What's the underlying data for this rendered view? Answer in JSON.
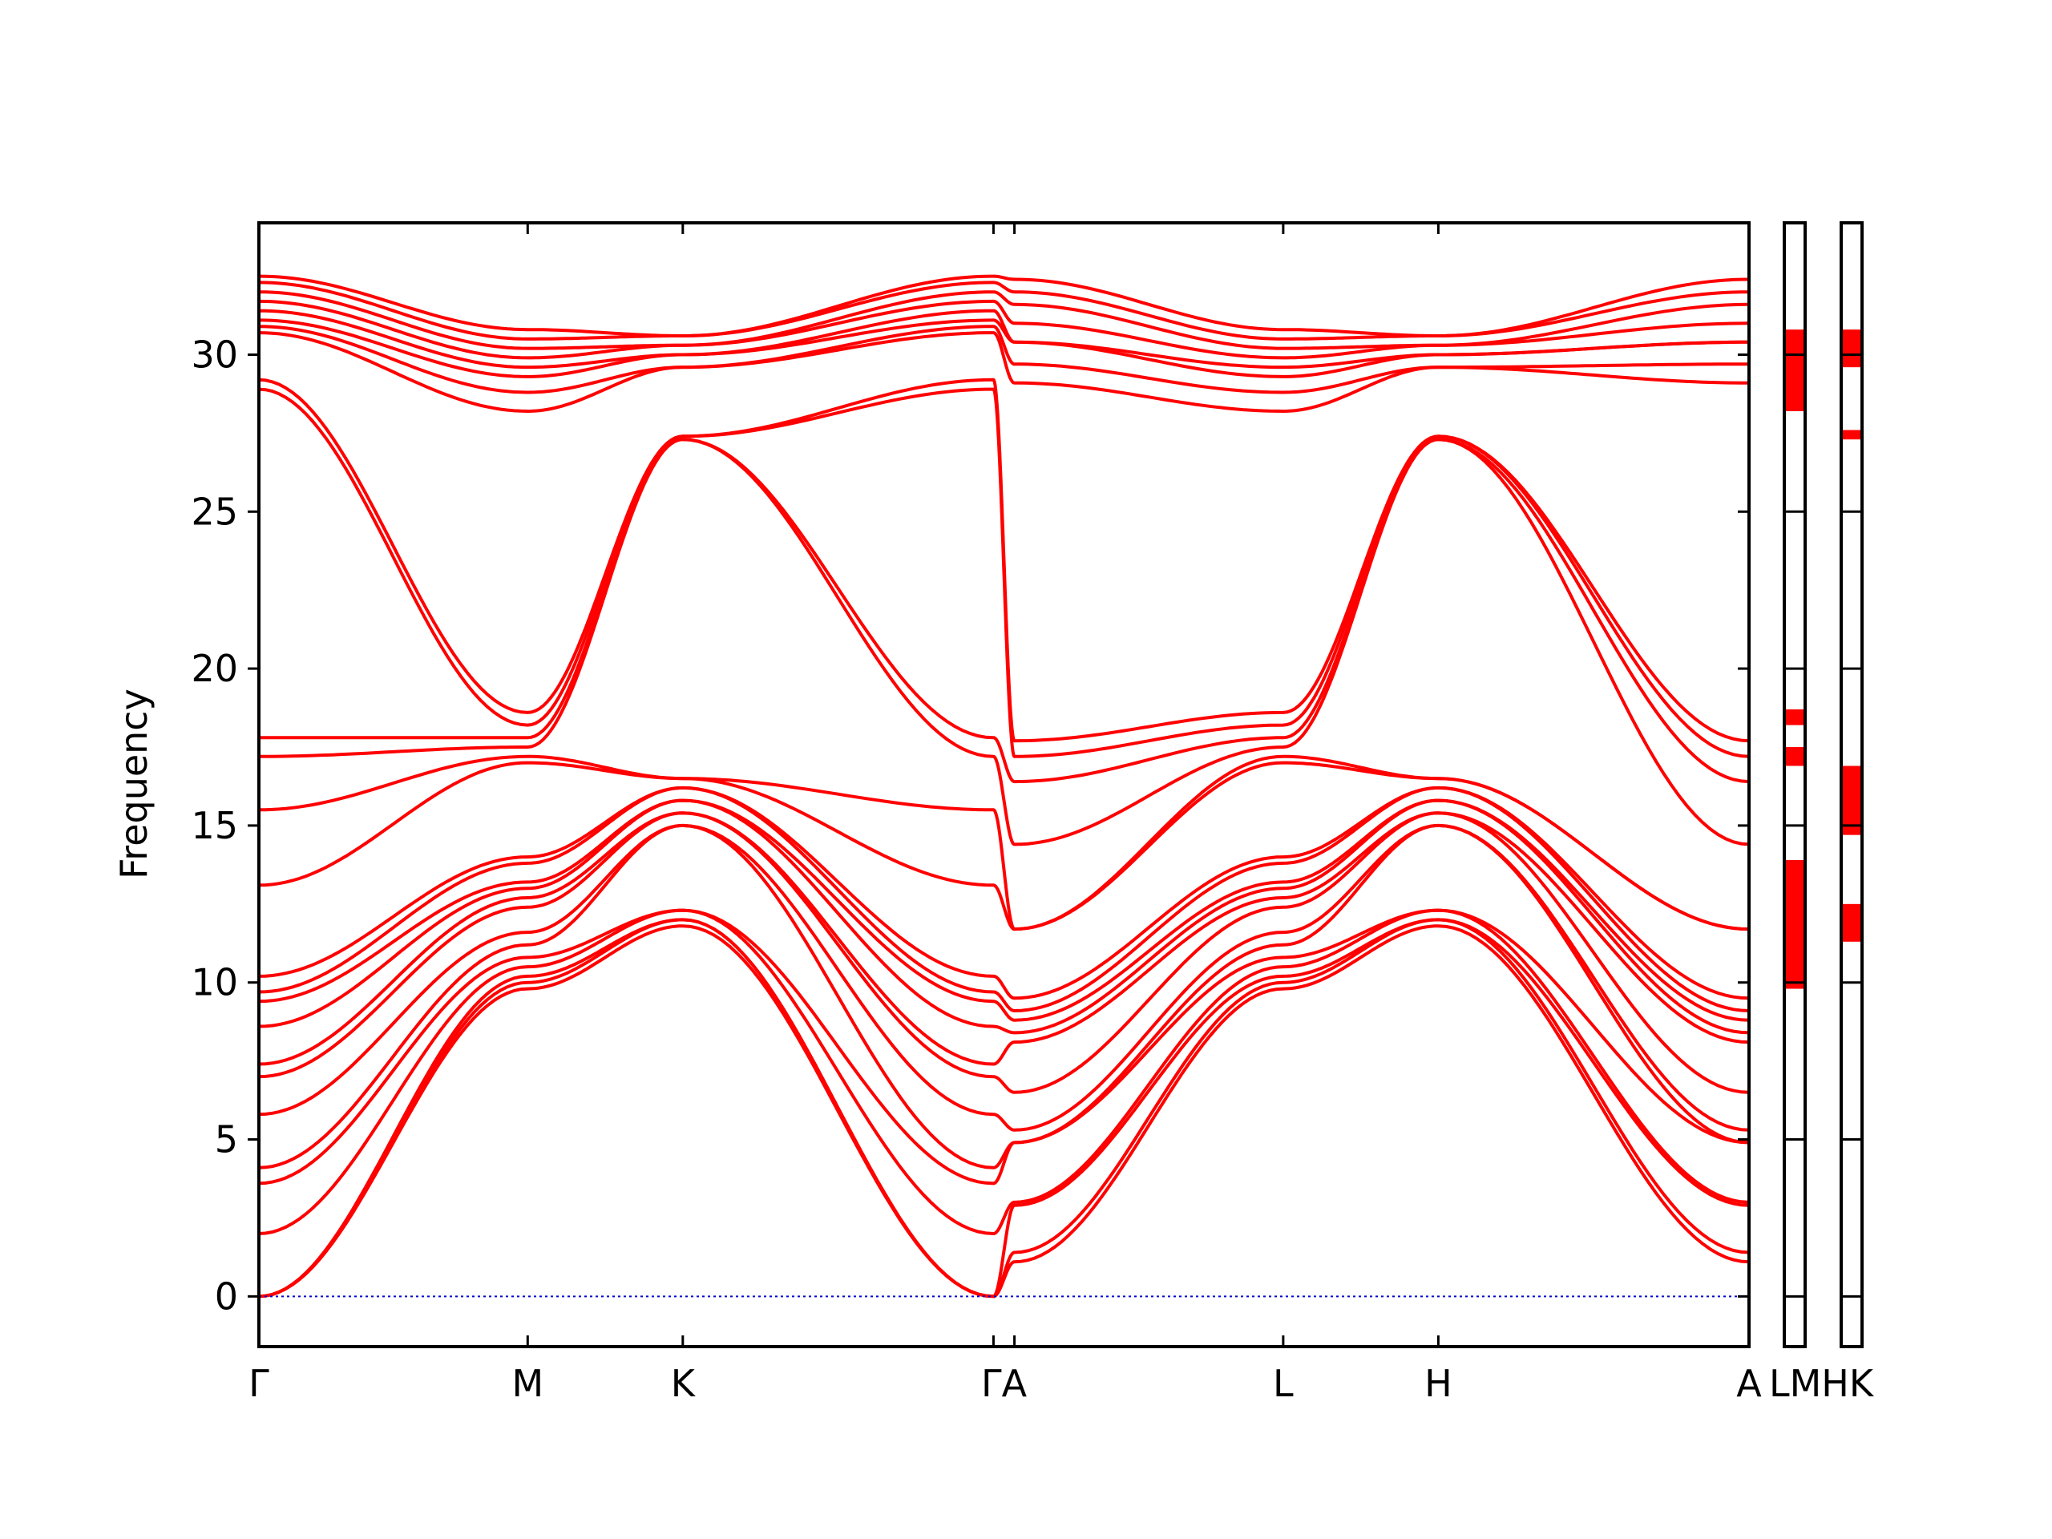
{
  "chart_data": {
    "type": "line",
    "ylabel": "Frequency",
    "xlabel": "",
    "ylim": [
      -1.6,
      34.2
    ],
    "yticks": [
      0,
      5,
      10,
      15,
      20,
      25,
      30
    ],
    "grid": false,
    "legend": "none",
    "colors": {
      "bands": "#ff0000",
      "zero_line": "#0000cc",
      "axes": "#000000"
    },
    "path": {
      "ticks": [
        {
          "label": "Γ",
          "x": 0.0
        },
        {
          "label": "M",
          "x": 0.577
        },
        {
          "label": "K",
          "x": 0.91
        },
        {
          "label": "Γ",
          "x": 1.577
        },
        {
          "label": "A",
          "x": 1.622
        },
        {
          "label": "L",
          "x": 2.199
        },
        {
          "label": "H",
          "x": 2.532
        },
        {
          "label": "A",
          "x": 3.199
        }
      ],
      "segments": [
        {
          "from": "Γ",
          "to": "M"
        },
        {
          "from": "M",
          "to": "K"
        },
        {
          "from": "K",
          "to": "Γ"
        },
        {
          "from": "Γ",
          "to": "A"
        },
        {
          "from": "A",
          "to": "L"
        },
        {
          "from": "L",
          "to": "H"
        },
        {
          "from": "H",
          "to": "A"
        }
      ]
    },
    "band_endpoints": {
      "Gamma": [
        0,
        0,
        0,
        2.0,
        3.6,
        4.1,
        5.8,
        7.0,
        7.4,
        8.6,
        9.4,
        9.7,
        10.2,
        13.1,
        15.5,
        17.2,
        17.8,
        28.9,
        29.2,
        30.7,
        30.9,
        31.1,
        31.4,
        31.7,
        32.0,
        32.3,
        32.5
      ],
      "M": [
        9.8,
        10.0,
        10.2,
        10.5,
        10.8,
        11.2,
        11.6,
        12.0,
        12.4,
        12.7,
        13.0,
        13.2,
        13.8,
        14.0,
        17.0,
        17.2,
        17.5,
        17.8,
        18.2,
        18.6,
        28.2,
        28.5,
        28.8,
        29.3,
        29.6,
        29.9,
        30.2,
        30.5,
        30.8
      ],
      "K": [
        11.8,
        12.0,
        12.3,
        15.0,
        15.4,
        15.8,
        16.2,
        16.5,
        27.3,
        27.4,
        29.6,
        30.0,
        30.3,
        30.6
      ],
      "A": [
        1.1,
        1.4,
        2.9,
        3.0,
        4.9,
        5.3,
        6.5,
        8.1,
        8.4,
        8.8,
        9.1,
        9.5,
        11.7,
        14.4,
        16.4,
        17.2,
        17.7,
        29.1,
        29.7,
        30.4,
        31.0,
        31.6,
        32.0,
        32.4
      ]
    },
    "dos_panels": [
      {
        "label_left": "L",
        "label_right": "M",
        "ranges": [
          [
            9.8,
            13.9
          ],
          [
            16.9,
            17.5
          ],
          [
            18.2,
            18.7
          ],
          [
            28.2,
            30.8
          ]
        ]
      },
      {
        "label_left": "H",
        "label_right": "K",
        "ranges": [
          [
            11.3,
            12.5
          ],
          [
            14.7,
            16.9
          ],
          [
            27.3,
            27.6
          ],
          [
            29.6,
            30.8
          ]
        ]
      }
    ],
    "bottom_labels": [
      "Γ",
      "M",
      "K",
      "ΓA",
      "L",
      "H",
      "A",
      "LMHK"
    ]
  }
}
